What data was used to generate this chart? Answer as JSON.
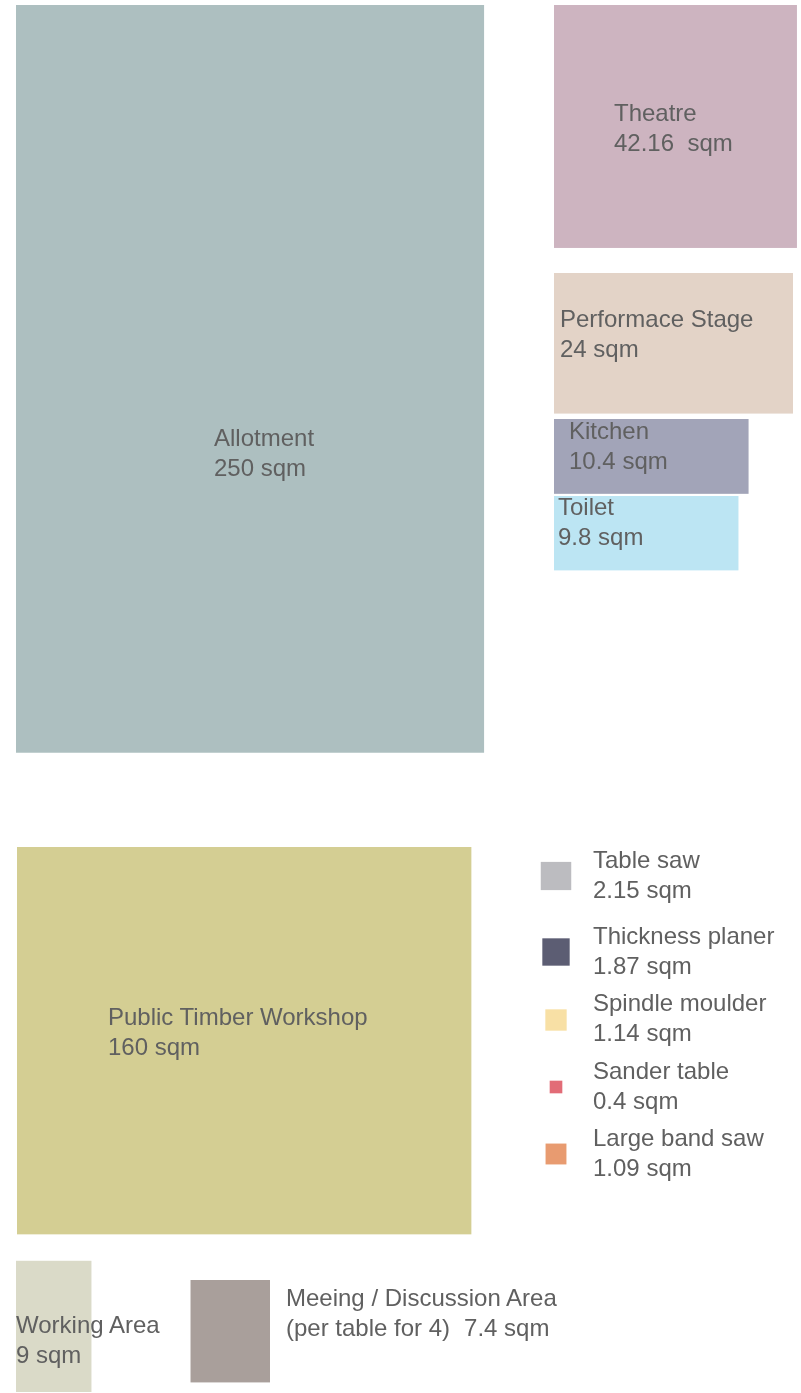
{
  "chart_data": {
    "type": "other",
    "categories": [
      "Allotment",
      "Theatre",
      "Performace Stage",
      "Kitchen",
      "Toilet",
      "Public Timber Workshop",
      "Table saw",
      "Thickness planer",
      "Spindle moulder",
      "Sander table",
      "Large band saw",
      "Working Area",
      "Meeing / Discussion Area\n(per table for 4)"
    ],
    "values": [
      250,
      42.16,
      24,
      10.4,
      9.8,
      160,
      2.15,
      1.87,
      1.14,
      0.4,
      1.09,
      9,
      7.4
    ],
    "value_labels": [
      "250 sqm",
      "42.16  sqm",
      "24 sqm",
      "10.4 sqm",
      "9.8 sqm",
      "160 sqm",
      "2.15 sqm",
      "1.87 sqm",
      "1.14 sqm",
      "0.4 sqm",
      "1.09 sqm",
      "9 sqm",
      "7.4 sqm"
    ],
    "colors": [
      "#adbfc0",
      "#cdb4c0",
      "#e3d3c7",
      "#a2a4b8",
      "#bce5f3",
      "#d4ce93",
      "#bcbcc0",
      "#5c5d73",
      "#f8e0a5",
      "#e26c77",
      "#e89b70",
      "#dadac8",
      "#a99f9b"
    ]
  }
}
